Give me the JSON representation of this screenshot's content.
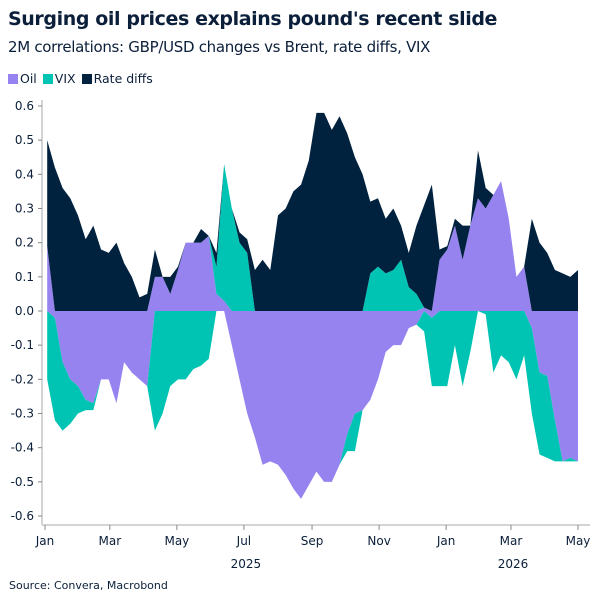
{
  "title": "Surging oil prices explains pound's recent slide",
  "subtitle": "2M correlations: GBP/USD changes vs Brent, rate diffs, VIX",
  "source": "Source: Convera, Macrobond",
  "chart_data": {
    "type": "area",
    "stacked": true,
    "title": "Surging oil prices explains pound's recent slide",
    "subtitle": "2M correlations: GBP/USD changes vs Brent, rate diffs, VIX",
    "xlabel": "",
    "ylabel": "",
    "ylim": [
      -0.6,
      0.6
    ],
    "yticks": [
      "0.6",
      "0.5",
      "0.4",
      "0.3",
      "0.2",
      "0.1",
      "0.0",
      "-0.1",
      "-0.2",
      "-0.3",
      "-0.4",
      "-0.5",
      "-0.6"
    ],
    "xlim": [
      "2025-01-01",
      "2026-05-01"
    ],
    "xticks": [
      {
        "date": "2025-01-01",
        "label": "Jan"
      },
      {
        "date": "2025-03-01",
        "label": "Mar"
      },
      {
        "date": "2025-05-01",
        "label": "May"
      },
      {
        "date": "2025-07-01",
        "label": "Jul"
      },
      {
        "date": "2025-09-01",
        "label": "Sep"
      },
      {
        "date": "2025-11-01",
        "label": "Nov"
      },
      {
        "date": "2026-01-01",
        "label": "Jan"
      },
      {
        "date": "2026-03-01",
        "label": "Mar"
      },
      {
        "date": "2026-05-01",
        "label": "May"
      }
    ],
    "year_labels": [
      {
        "date": "2025-07-01",
        "label": "2025"
      },
      {
        "date": "2026-03-01",
        "label": "2026"
      }
    ],
    "grid": false,
    "legend_position": "top-left",
    "x": [
      "2025-01-03",
      "2025-01-10",
      "2025-01-17",
      "2025-01-24",
      "2025-01-31",
      "2025-02-07",
      "2025-02-14",
      "2025-02-21",
      "2025-02-28",
      "2025-03-07",
      "2025-03-14",
      "2025-03-21",
      "2025-03-28",
      "2025-04-04",
      "2025-04-11",
      "2025-04-18",
      "2025-04-25",
      "2025-05-02",
      "2025-05-09",
      "2025-05-16",
      "2025-05-23",
      "2025-05-30",
      "2025-06-06",
      "2025-06-13",
      "2025-06-20",
      "2025-06-27",
      "2025-07-04",
      "2025-07-11",
      "2025-07-18",
      "2025-07-25",
      "2025-08-01",
      "2025-08-08",
      "2025-08-15",
      "2025-08-22",
      "2025-08-29",
      "2025-09-05",
      "2025-09-12",
      "2025-09-19",
      "2025-09-26",
      "2025-10-03",
      "2025-10-10",
      "2025-10-17",
      "2025-10-24",
      "2025-10-31",
      "2025-11-07",
      "2025-11-14",
      "2025-11-21",
      "2025-11-28",
      "2025-12-05",
      "2025-12-12",
      "2025-12-19",
      "2025-12-26",
      "2026-01-02",
      "2026-01-09",
      "2026-01-16",
      "2026-01-23",
      "2026-01-30",
      "2026-02-06",
      "2026-02-13",
      "2026-02-20",
      "2026-02-27",
      "2026-03-06",
      "2026-03-13",
      "2026-03-20",
      "2026-03-27",
      "2026-04-03",
      "2026-04-10",
      "2026-04-17",
      "2026-04-24",
      "2026-05-01"
    ],
    "series": [
      {
        "name": "Oil",
        "color": "#9683ef",
        "values": [
          0.19,
          -0.02,
          -0.15,
          -0.2,
          -0.22,
          -0.26,
          -0.27,
          -0.2,
          -0.2,
          -0.27,
          -0.15,
          -0.18,
          -0.2,
          -0.22,
          0.1,
          0.1,
          0.05,
          0.12,
          0.2,
          0.2,
          0.2,
          0.22,
          0.05,
          0.03,
          -0.1,
          -0.2,
          -0.3,
          -0.37,
          -0.45,
          -0.44,
          -0.45,
          -0.48,
          -0.52,
          -0.55,
          -0.51,
          -0.47,
          -0.5,
          -0.5,
          -0.45,
          -0.36,
          -0.3,
          -0.29,
          -0.26,
          -0.2,
          -0.12,
          -0.1,
          -0.1,
          -0.05,
          -0.04,
          0.01,
          -0.02,
          0.15,
          0.18,
          0.25,
          0.15,
          0.25,
          0.33,
          0.3,
          0.34,
          0.38,
          0.27,
          0.1,
          0.13,
          -0.05,
          -0.18,
          -0.19,
          -0.32,
          -0.44,
          -0.43,
          -0.44
        ]
      },
      {
        "name": "VIX",
        "color": "#00c4b3",
        "values": [
          -0.2,
          -0.3,
          -0.2,
          -0.13,
          -0.08,
          -0.03,
          -0.02,
          0,
          0,
          0,
          0,
          0,
          0,
          0,
          -0.35,
          -0.3,
          -0.22,
          -0.2,
          -0.2,
          -0.17,
          -0.16,
          -0.14,
          0.08,
          0.4,
          0.3,
          0.2,
          0.17,
          0,
          0,
          0,
          0,
          0,
          0,
          0,
          0,
          0,
          0,
          0,
          0,
          -0.05,
          -0.11,
          0,
          0.11,
          0.13,
          0.11,
          0.12,
          0.15,
          0.07,
          0.05,
          -0.06,
          -0.2,
          -0.22,
          -0.22,
          -0.1,
          -0.22,
          -0.12,
          0,
          -0.01,
          -0.18,
          -0.13,
          -0.15,
          -0.2,
          -0.13,
          -0.25,
          -0.24,
          -0.24,
          -0.12,
          0,
          -0.01,
          0
        ]
      },
      {
        "name": "Rate diffs",
        "color": "#00223f",
        "values": [
          0.31,
          0.42,
          0.36,
          0.33,
          0.28,
          0.21,
          0.25,
          0.18,
          0.17,
          0.2,
          0.14,
          0.1,
          0.04,
          0.05,
          0.08,
          0,
          0.05,
          0.01,
          0,
          0,
          0.04,
          0,
          0.04,
          0,
          0,
          0.03,
          0.04,
          0.12,
          0.15,
          0.12,
          0.28,
          0.3,
          0.35,
          0.37,
          0.44,
          0.58,
          0.58,
          0.53,
          0.57,
          0.52,
          0.45,
          0.4,
          0.21,
          0.2,
          0.16,
          0.18,
          0.1,
          0.1,
          0.2,
          0.3,
          0.37,
          0.03,
          0.01,
          0.02,
          0.1,
          0,
          0.14,
          0.06,
          0,
          0,
          0,
          0,
          0,
          0.27,
          0.2,
          0.17,
          0.12,
          0.11,
          0.1,
          0.12
        ]
      }
    ]
  }
}
